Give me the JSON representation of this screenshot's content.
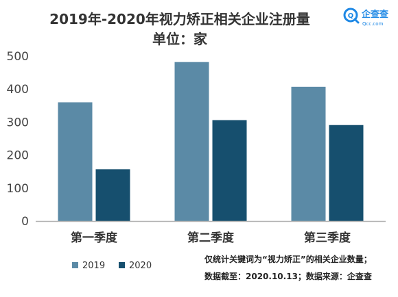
{
  "logo": {
    "cn": "企查查",
    "en": "Qcc.com",
    "color": "#1e88e5"
  },
  "notes": [
    "仅统计关键词为“视力矫正”的相关企业数量；",
    "数据截至：2020.10.13；数据来源：企查查"
  ],
  "chart_data": {
    "type": "bar",
    "title": "2019年-2020年视力矫正相关企业注册量",
    "subtitle": "单位：家",
    "categories": [
      "第一季度",
      "第二季度",
      "第三季度"
    ],
    "series": [
      {
        "name": "2019",
        "values": [
          360,
          482,
          407
        ],
        "color": "#5b8aa6"
      },
      {
        "name": "2020",
        "values": [
          157,
          306,
          291
        ],
        "color": "#164f6e"
      }
    ],
    "ylim": [
      0,
      500
    ],
    "yticks": [
      0,
      100,
      200,
      300,
      400,
      500
    ],
    "grid": false,
    "legend": "bottom-left",
    "axis_color": "#b0b0b0"
  }
}
